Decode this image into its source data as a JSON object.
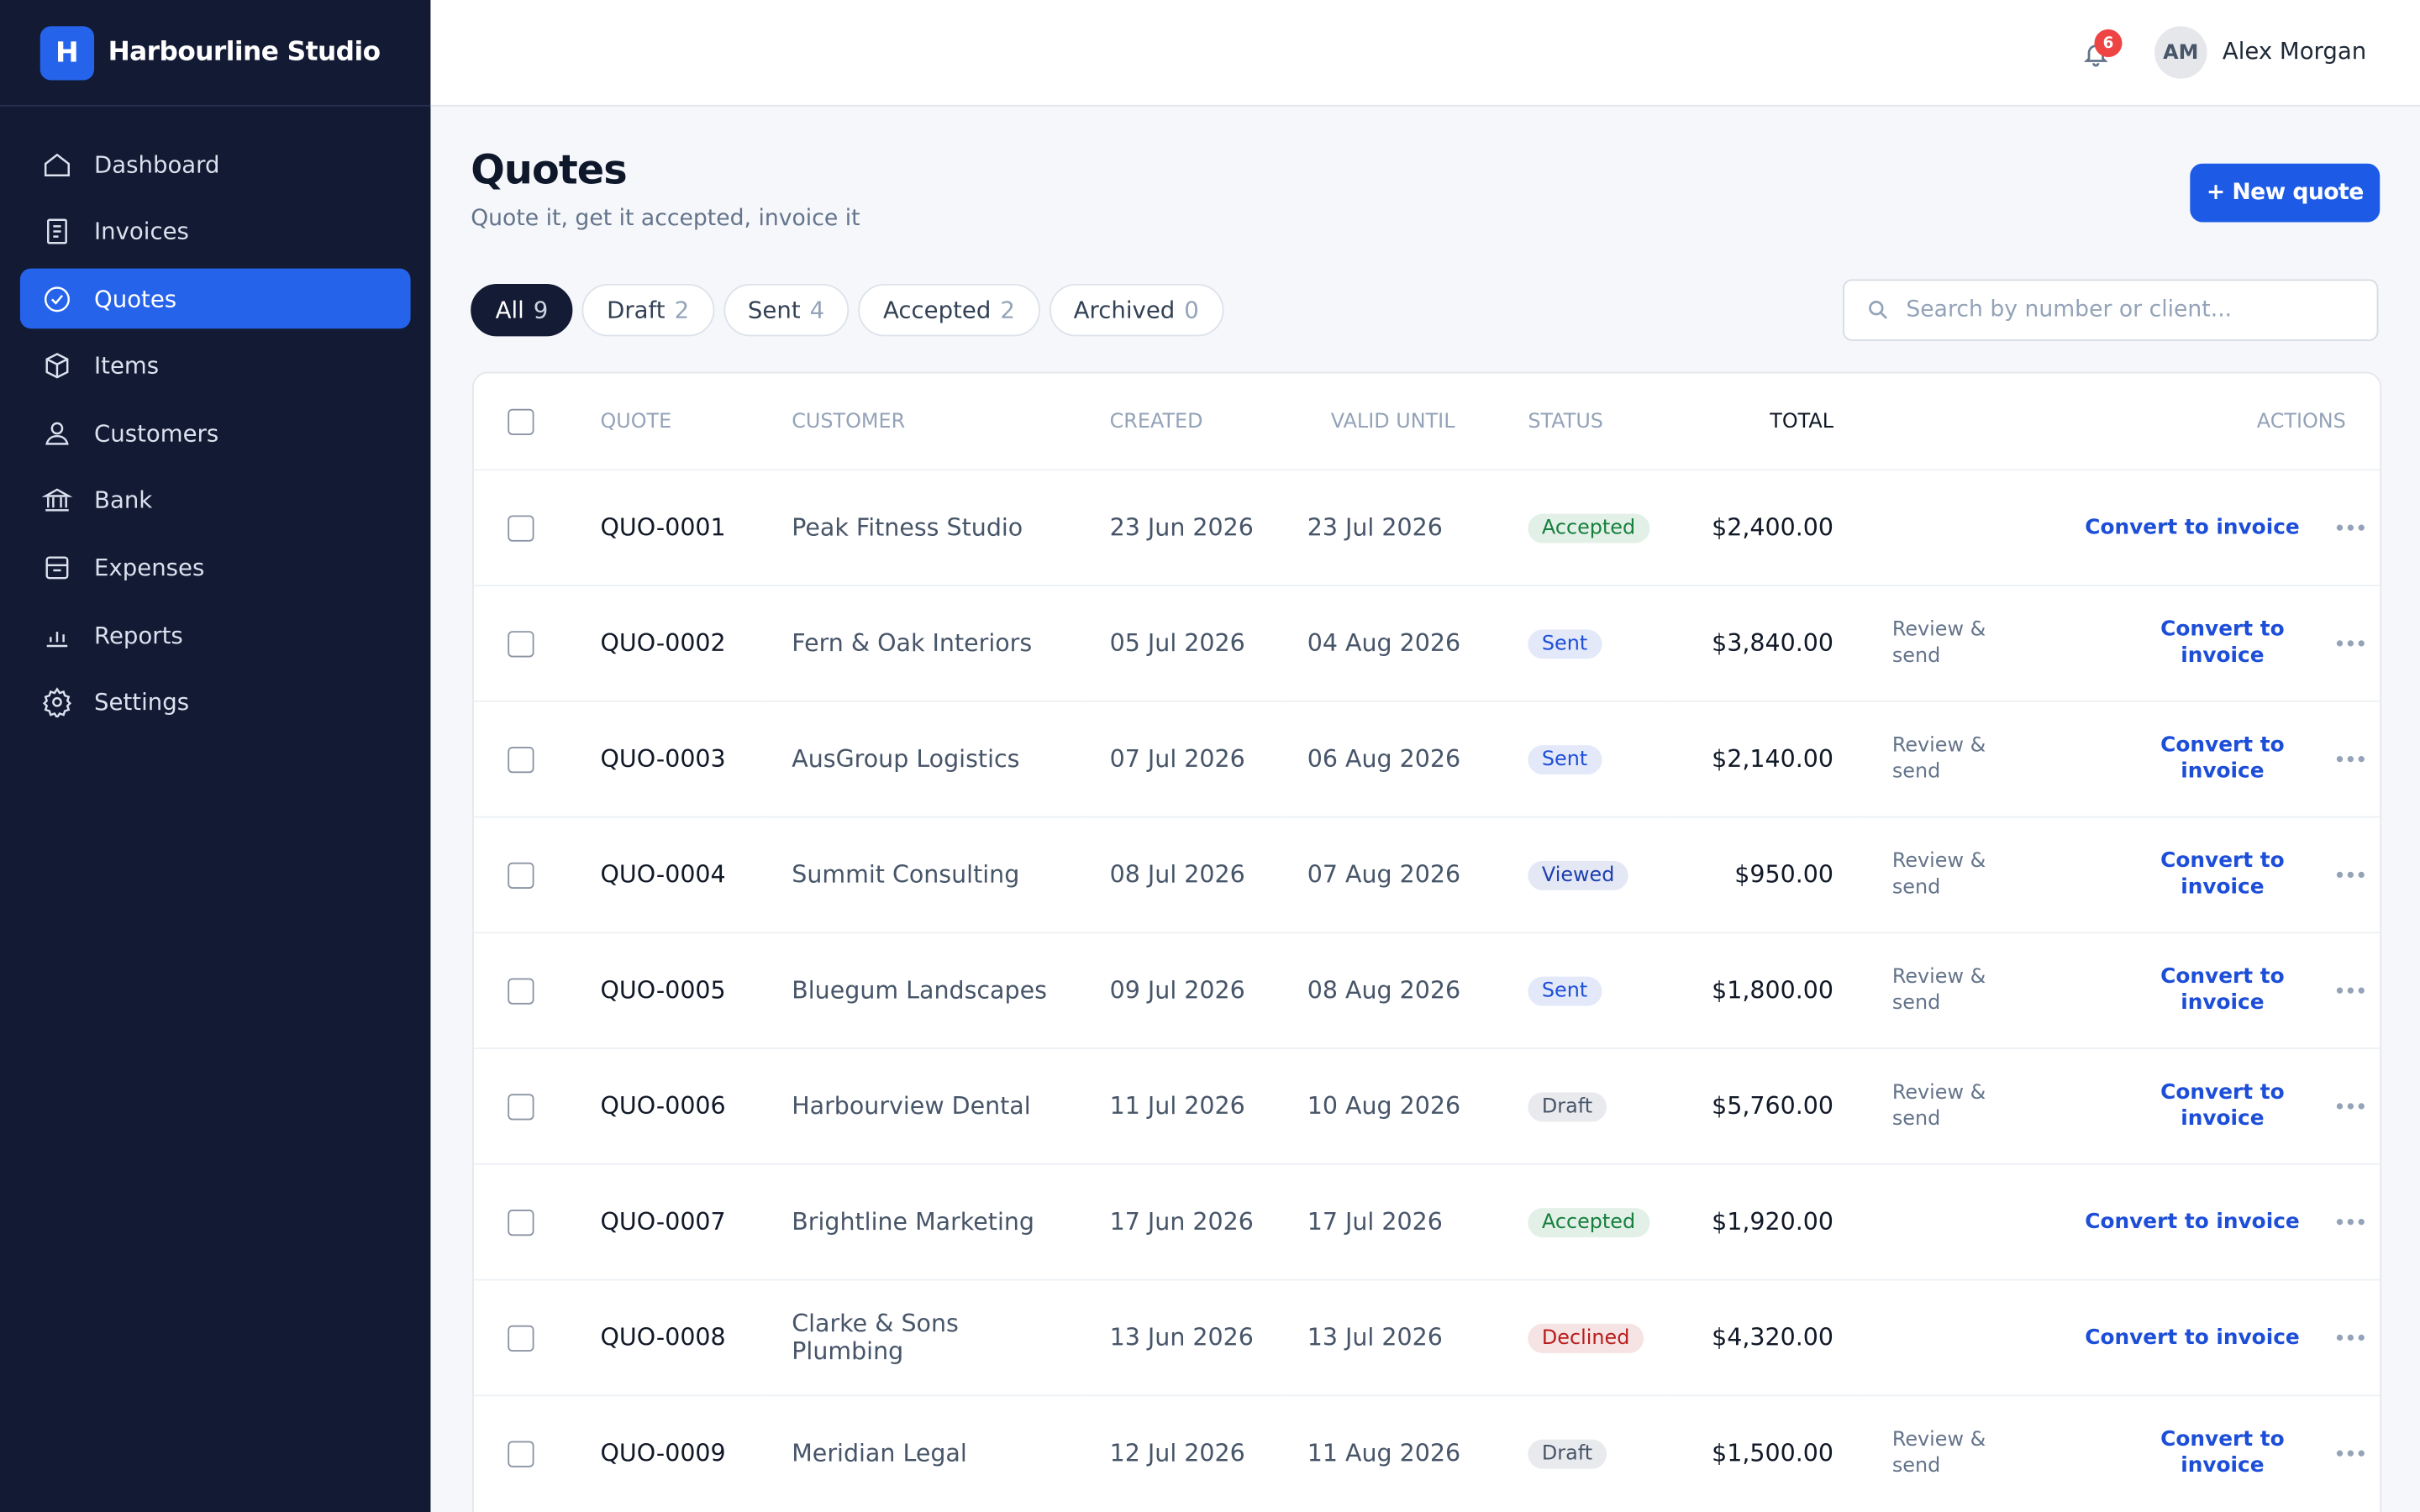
{
  "brand": {
    "logo": "H",
    "name": "Harbourline Studio"
  },
  "nav": [
    {
      "label": "Dashboard"
    },
    {
      "label": "Invoices"
    },
    {
      "label": "Quotes",
      "active": true
    },
    {
      "label": "Items"
    },
    {
      "label": "Customers"
    },
    {
      "label": "Bank"
    },
    {
      "label": "Expenses"
    },
    {
      "label": "Reports"
    },
    {
      "label": "Settings"
    }
  ],
  "header": {
    "notifications": 6,
    "user_initials": "AM",
    "user_name": "Alex Morgan"
  },
  "page": {
    "title": "Quotes",
    "subtitle": "Quote it, get it accepted, invoice it",
    "new_button": "+ New quote"
  },
  "tabs": [
    {
      "label": "All",
      "count": 9,
      "active": true
    },
    {
      "label": "Draft",
      "count": 2
    },
    {
      "label": "Sent",
      "count": 4
    },
    {
      "label": "Accepted",
      "count": 2
    },
    {
      "label": "Archived",
      "count": 0
    }
  ],
  "search": {
    "placeholder": "Search by number or client..."
  },
  "table": {
    "columns": [
      "QUOTE",
      "CUSTOMER",
      "CREATED",
      "VALID UNTIL",
      "STATUS",
      "TOTAL",
      "ACTIONS"
    ],
    "rows": [
      {
        "quote": "QUO-0001",
        "customer": "Peak Fitness Studio",
        "created": "23 Jun 2026",
        "valid_until": "23 Jul 2026",
        "status": "Accepted",
        "status_color": "#15803d",
        "total": "$2,400.00",
        "actions": [
          "Convert to invoice"
        ]
      },
      {
        "quote": "QUO-0002",
        "customer": "Fern & Oak Interiors",
        "created": "05 Jul 2026",
        "valid_until": "04 Aug 2026",
        "status": "Sent",
        "status_color": "#1d4ed8",
        "total": "$3,840.00",
        "actions": [
          "Review & send",
          "Convert to invoice"
        ]
      },
      {
        "quote": "QUO-0003",
        "customer": "AusGroup Logistics",
        "created": "07 Jul 2026",
        "valid_until": "06 Aug 2026",
        "status": "Sent",
        "status_color": "#1d4ed8",
        "total": "$2,140.00",
        "actions": [
          "Review & send",
          "Convert to invoice"
        ]
      },
      {
        "quote": "QUO-0004",
        "customer": "Summit Consulting",
        "created": "08 Jul 2026",
        "valid_until": "07 Aug 2026",
        "status": "Viewed",
        "status_color": "#1e40af",
        "total": "$950.00",
        "actions": [
          "Review & send",
          "Convert to invoice"
        ]
      },
      {
        "quote": "QUO-0005",
        "customer": "Bluegum Landscapes",
        "created": "09 Jul 2026",
        "valid_until": "08 Aug 2026",
        "status": "Sent",
        "status_color": "#1d4ed8",
        "total": "$1,800.00",
        "actions": [
          "Review & send",
          "Convert to invoice"
        ]
      },
      {
        "quote": "QUO-0006",
        "customer": "Harbourview Dental",
        "created": "11 Jul 2026",
        "valid_until": "10 Aug 2026",
        "status": "Draft",
        "status_color": "#475569",
        "total": "$5,760.00",
        "actions": [
          "Review & send",
          "Convert to invoice"
        ]
      },
      {
        "quote": "QUO-0007",
        "customer": "Brightline Marketing",
        "created": "17 Jun 2026",
        "valid_until": "17 Jul 2026",
        "status": "Accepted",
        "status_color": "#15803d",
        "total": "$1,920.00",
        "actions": [
          "Convert to invoice"
        ]
      },
      {
        "quote": "QUO-0008",
        "customer": "Clarke & Sons Plumbing",
        "created": "13 Jun 2026",
        "valid_until": "13 Jul 2026",
        "status": "Declined",
        "status_color": "#b91c1c",
        "total": "$4,320.00",
        "actions": [
          "Convert to invoice"
        ]
      },
      {
        "quote": "QUO-0009",
        "customer": "Meridian Legal",
        "created": "12 Jul 2026",
        "valid_until": "11 Aug 2026",
        "status": "Draft",
        "status_color": "#475569",
        "total": "$1,500.00",
        "actions": [
          "Review & send",
          "Convert to invoice"
        ]
      }
    ]
  }
}
